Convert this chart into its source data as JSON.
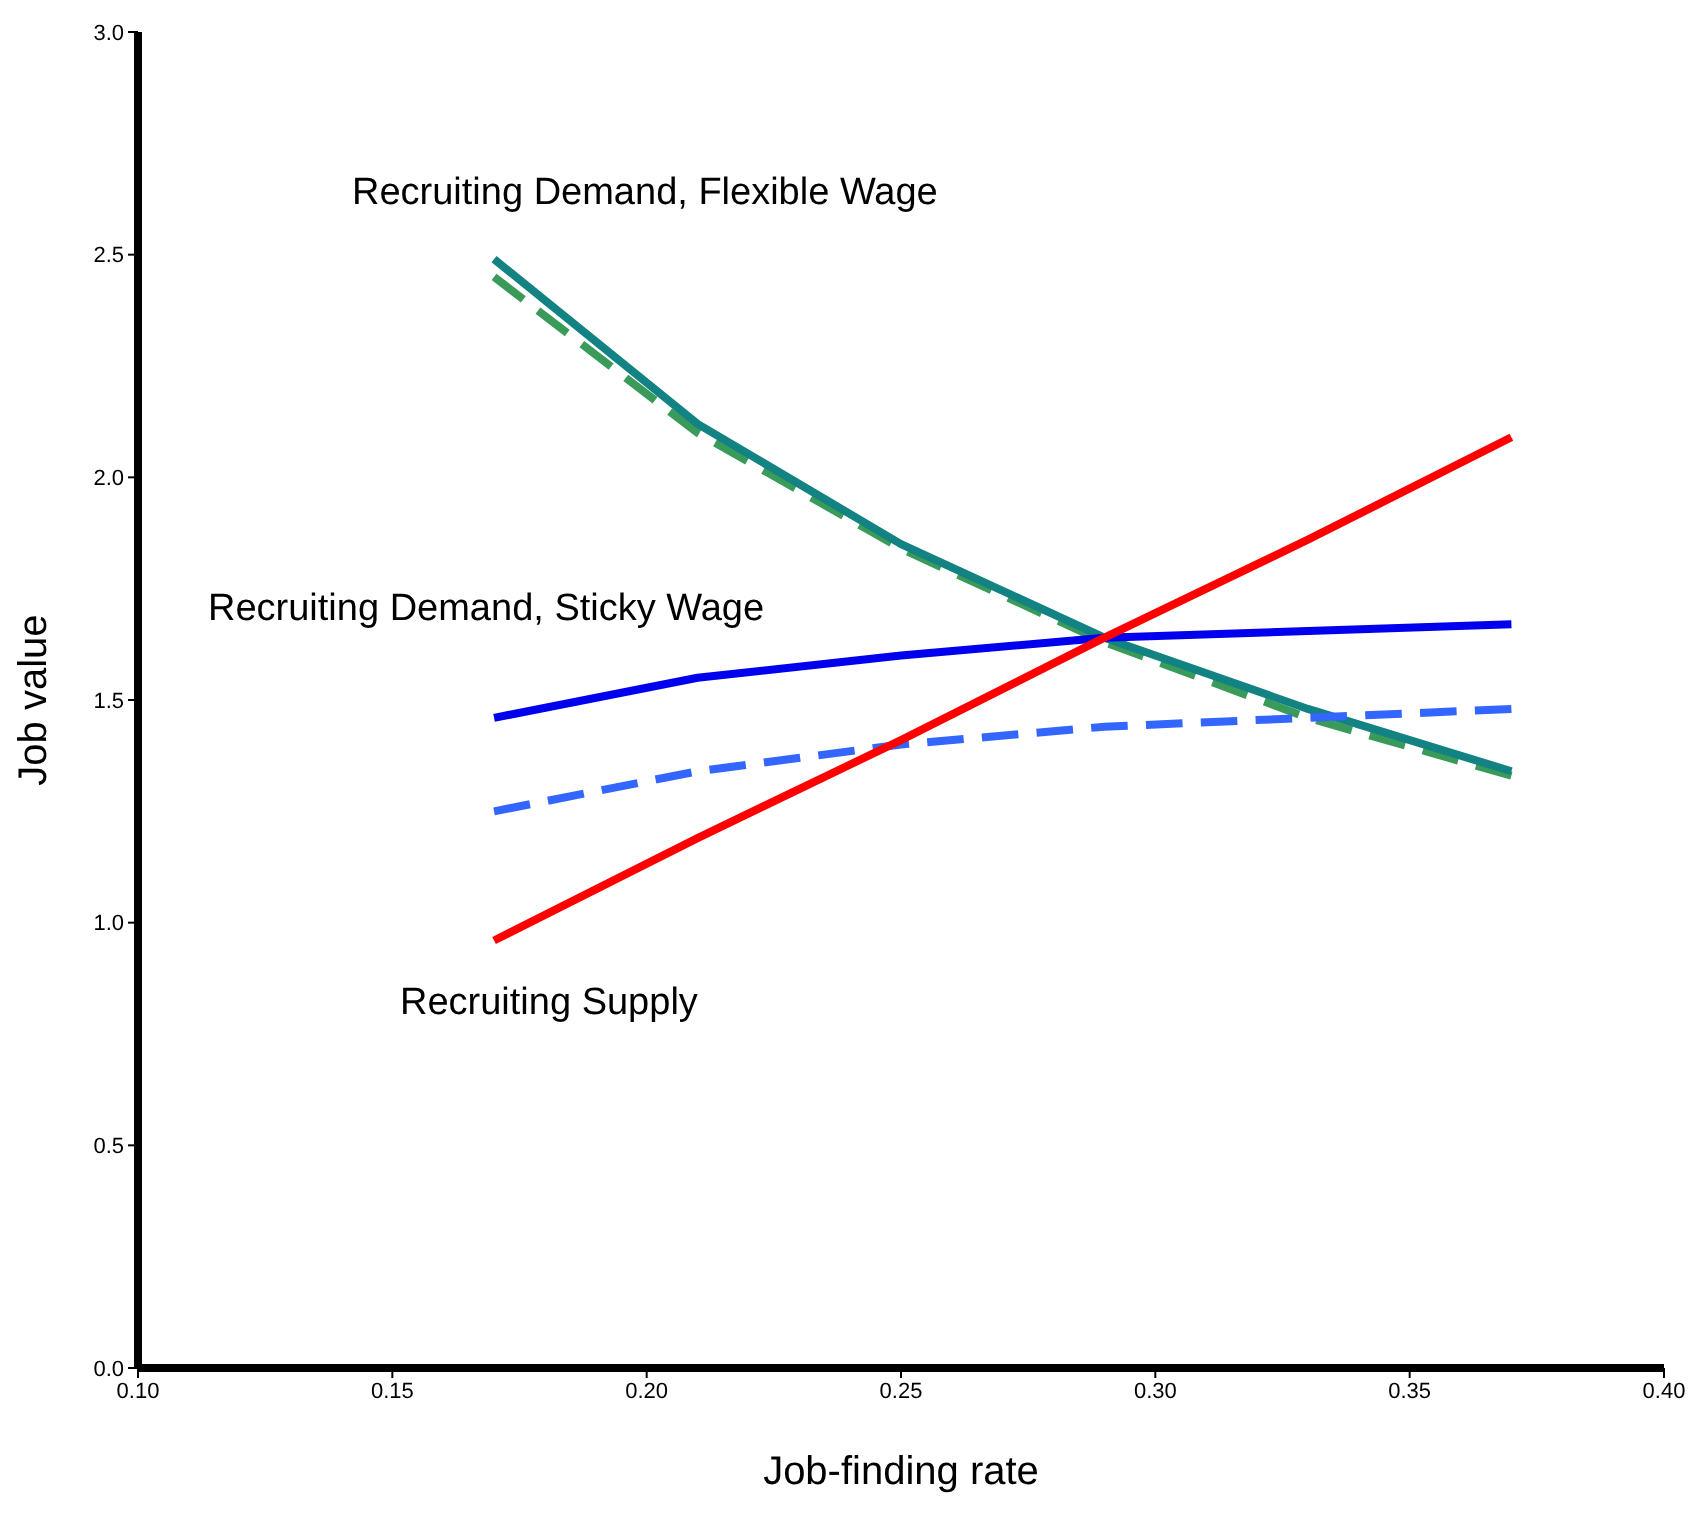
{
  "chart_data": {
    "type": "line",
    "xlabel": "Job-finding rate",
    "ylabel": "Job value",
    "x": [
      0.17,
      0.21,
      0.25,
      0.29,
      0.33,
      0.37
    ],
    "series": [
      {
        "color": "#3a9a5a",
        "line_style": "dashed",
        "values": [
          2.45,
          2.1,
          1.84,
          1.63,
          1.46,
          1.33
        ]
      },
      {
        "color": "#128282",
        "line_style": "solid",
        "values": [
          2.49,
          2.12,
          1.85,
          1.64,
          1.48,
          1.34
        ]
      },
      {
        "color": "#3366ff",
        "line_style": "dashed",
        "values": [
          1.25,
          1.34,
          1.4,
          1.44,
          1.46,
          1.48
        ]
      },
      {
        "color": "#0000ee",
        "line_style": "solid",
        "values": [
          1.46,
          1.55,
          1.6,
          1.64,
          1.655,
          1.67
        ]
      },
      {
        "color": "#ff0000",
        "line_style": "solid",
        "values": [
          0.96,
          1.19,
          1.41,
          1.64,
          1.86,
          2.09
        ]
      }
    ],
    "xlim": [
      0.1,
      0.4
    ],
    "xticks": [
      {
        "value": 0.1,
        "label": "0.10"
      },
      {
        "value": 0.15,
        "label": "0.15"
      },
      {
        "value": 0.2,
        "label": "0.20"
      },
      {
        "value": 0.25,
        "label": "0.25"
      },
      {
        "value": 0.3,
        "label": "0.30"
      },
      {
        "value": 0.35,
        "label": "0.35"
      },
      {
        "value": 0.4,
        "label": "0.40"
      }
    ],
    "ylim": [
      0,
      3
    ],
    "yticks": [
      {
        "value": 0,
        "label": "0.0"
      },
      {
        "value": 0.5,
        "label": "0.5"
      },
      {
        "value": 1,
        "label": "1.0"
      },
      {
        "value": 1.5,
        "label": "1.5"
      },
      {
        "value": 2,
        "label": "2.0"
      },
      {
        "value": 2.5,
        "label": "2.5"
      },
      {
        "value": 3,
        "label": "3.0"
      }
    ],
    "annotations": [
      "Recruiting Demand, Flexible Wage",
      "Recruiting Demand, Sticky Wage",
      "Recruiting Supply"
    ],
    "grid": false,
    "legend": false,
    "marker": "none"
  }
}
